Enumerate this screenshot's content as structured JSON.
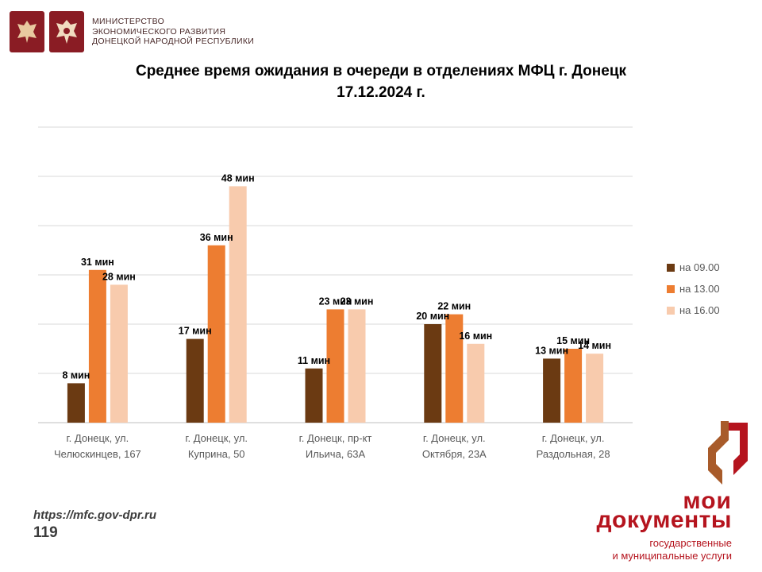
{
  "header": {
    "ministry_lines": [
      "МИНИСТЕРСТВО",
      "ЭКОНОМИЧЕСКОГО РАЗВИТИЯ",
      "ДОНЕЦКОЙ НАРОДНОЙ РЕСПУБЛИКИ"
    ]
  },
  "chart_data": {
    "type": "bar",
    "title_line1": "Среднее время ожидания в очереди в отделениях МФЦ г. Донецк",
    "title_line2": "17.12.2024 г.",
    "categories": [
      [
        "г. Донецк, ул.",
        "Челюскинцев, 167"
      ],
      [
        "г. Донецк, ул.",
        "Куприна, 50"
      ],
      [
        "г. Донецк, пр-кт",
        "Ильича, 63А"
      ],
      [
        "г. Донецк, ул.",
        "Октября, 23А"
      ],
      [
        "г. Донецк, ул.",
        "Раздольная, 28"
      ]
    ],
    "series": [
      {
        "name": "на 09.00",
        "color": "#6b3a12",
        "values": [
          8,
          17,
          11,
          20,
          13
        ]
      },
      {
        "name": "на 13.00",
        "color": "#ed7d31",
        "values": [
          31,
          36,
          23,
          22,
          15
        ]
      },
      {
        "name": "на 16.00",
        "color": "#f8cbad",
        "values": [
          28,
          48,
          23,
          16,
          14
        ]
      }
    ],
    "value_unit": "мин",
    "ylim": [
      0,
      60
    ],
    "grid": true,
    "legend_position": "right"
  },
  "footer": {
    "url": "https://mfc.gov-dpr.ru",
    "page_number": "119"
  },
  "brand": {
    "name_line1": "мои",
    "name_line2": "документы",
    "sub_line1": "государственные",
    "sub_line2": "и муниципальные услуги",
    "color": "#b5141e"
  }
}
